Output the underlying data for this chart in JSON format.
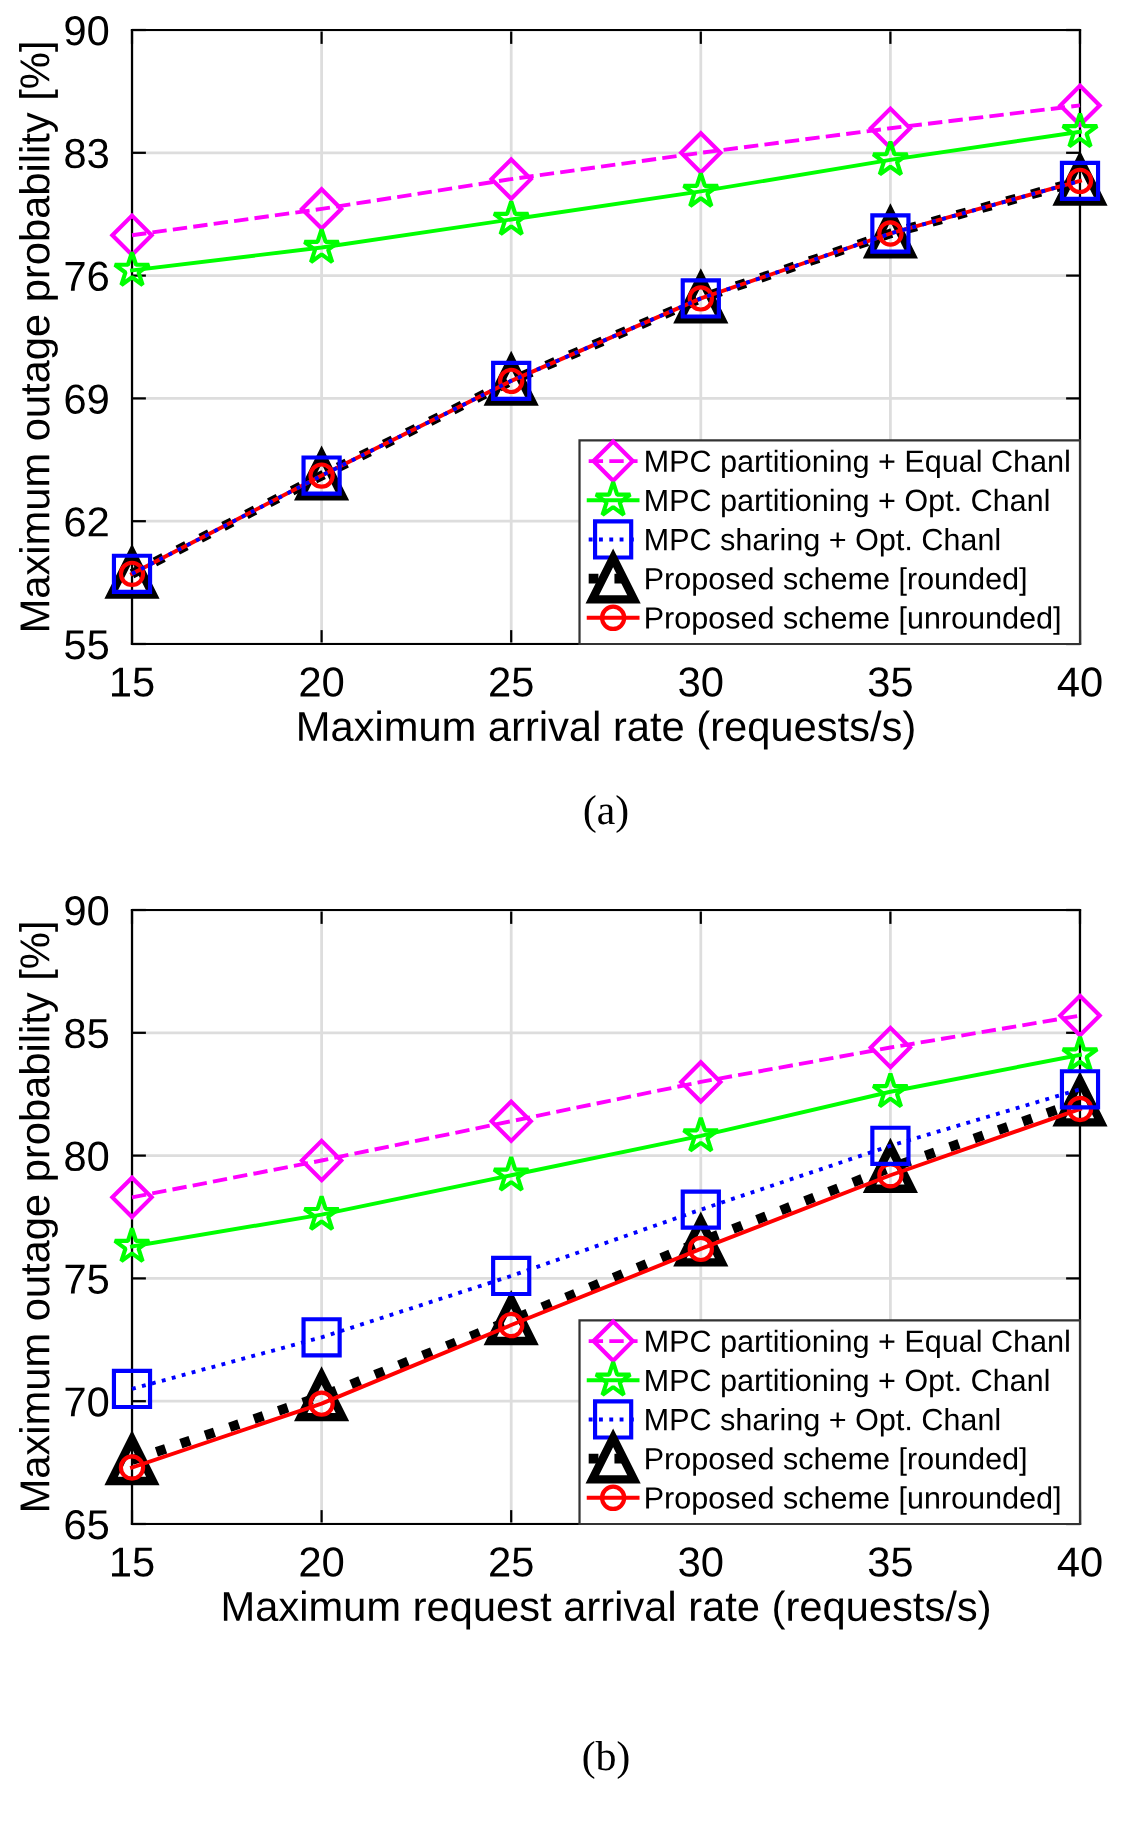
{
  "chart_data": [
    {
      "type": "line",
      "xlabel": "Maximum arrival rate (requests/s)",
      "ylabel": "Maximum outage probability [%]",
      "annotations": [
        "(a)"
      ],
      "x": [
        15,
        20,
        25,
        30,
        35,
        40
      ],
      "xlim": [
        15,
        40
      ],
      "xticks": [
        15,
        20,
        25,
        30,
        35,
        40
      ],
      "ylim": [
        55,
        90
      ],
      "yticks": [
        55,
        62,
        69,
        76,
        83,
        90
      ],
      "grid": true,
      "legend": "bottom right",
      "series": [
        {
          "name": "MPC partitioning + Equal Chanl",
          "color": "#ff00ff",
          "marker": "diamond",
          "line_style": "dashed",
          "values": [
            78.3,
            79.8,
            81.5,
            83.0,
            84.4,
            85.7
          ]
        },
        {
          "name": "MPC partitioning + Opt. Chanl",
          "color": "#00ff00",
          "marker": "star",
          "line_style": "solid",
          "values": [
            76.3,
            77.6,
            79.2,
            80.8,
            82.6,
            84.2
          ]
        },
        {
          "name": "MPC sharing + Opt. Chanl",
          "color": "#0000ff",
          "marker": "square",
          "line_style": "dotted",
          "values": [
            59.0,
            64.6,
            70.0,
            74.7,
            78.4,
            81.4
          ]
        },
        {
          "name": "Proposed scheme [rounded]",
          "color": "#000000",
          "marker": "triangle",
          "line_style": "dotted",
          "values": [
            59.0,
            64.6,
            70.0,
            74.7,
            78.4,
            81.4
          ]
        },
        {
          "name": "Proposed scheme [unrounded]",
          "color": "#ff0000",
          "marker": "circle",
          "line_style": "solid",
          "values": [
            59.0,
            64.6,
            70.0,
            74.7,
            78.4,
            81.4
          ]
        }
      ]
    },
    {
      "type": "line",
      "xlabel": "Maximum request arrival rate (requests/s)",
      "ylabel": "Maximum outage probability [%]",
      "annotations": [
        "(b)"
      ],
      "x": [
        15,
        20,
        25,
        30,
        35,
        40
      ],
      "xlim": [
        15,
        40
      ],
      "xticks": [
        15,
        20,
        25,
        30,
        35,
        40
      ],
      "ylim": [
        65,
        90
      ],
      "yticks": [
        65,
        70,
        75,
        80,
        85,
        90
      ],
      "grid": true,
      "legend": "bottom right",
      "series": [
        {
          "name": "MPC partitioning + Equal Chanl",
          "color": "#ff00ff",
          "marker": "diamond",
          "line_style": "dashed",
          "values": [
            78.3,
            79.8,
            81.4,
            83.0,
            84.4,
            85.7
          ]
        },
        {
          "name": "MPC partitioning + Opt. Chanl",
          "color": "#00ff00",
          "marker": "star",
          "line_style": "solid",
          "values": [
            76.3,
            77.6,
            79.2,
            80.8,
            82.6,
            84.1
          ]
        },
        {
          "name": "MPC sharing + Opt. Chanl",
          "color": "#0000ff",
          "marker": "square",
          "line_style": "dotted",
          "values": [
            70.5,
            72.6,
            75.1,
            77.8,
            80.4,
            82.7
          ]
        },
        {
          "name": "Proposed scheme [rounded]",
          "color": "#000000",
          "marker": "triangle",
          "line_style": "dotted",
          "values": [
            67.6,
            70.2,
            73.3,
            76.5,
            79.5,
            82.2
          ]
        },
        {
          "name": "Proposed scheme [unrounded]",
          "color": "#ff0000",
          "marker": "circle",
          "line_style": "solid",
          "values": [
            67.3,
            69.9,
            73.1,
            76.2,
            79.2,
            81.9
          ]
        }
      ]
    }
  ]
}
